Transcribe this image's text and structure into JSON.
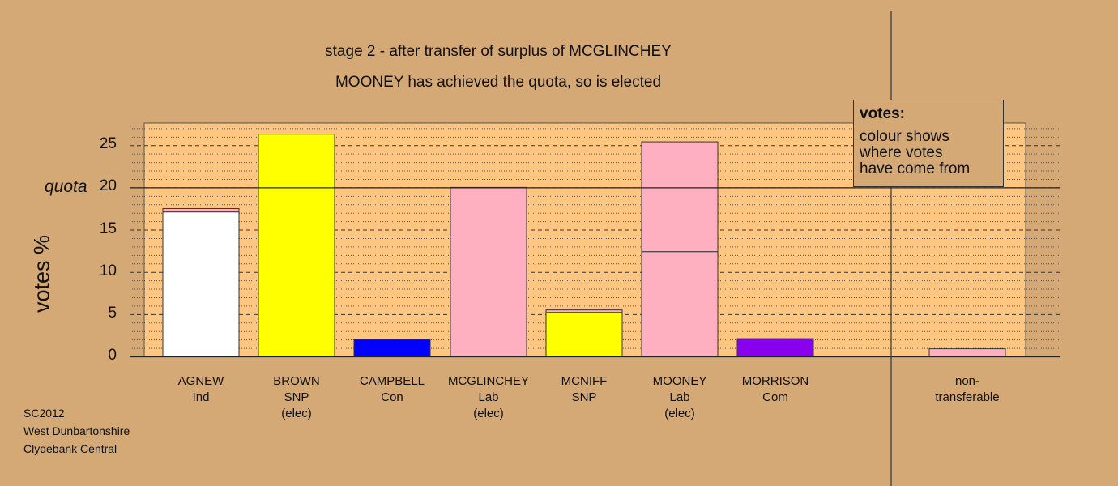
{
  "title_line1": "stage 2 - after transfer of surplus of MCGLINCHEY",
  "title_line2": "MOONEY has achieved the quota, so is elected",
  "ylabel": "votes %",
  "quota_label": "quota",
  "legend": {
    "title": "votes:",
    "line1": "colour shows",
    "line2": "where votes",
    "line3": "have come from"
  },
  "footer": {
    "line1": "SC2012",
    "line2": "West Dunbartonshire",
    "line3": "Clydebank Central"
  },
  "colors": {
    "background": "#d4a975",
    "plot_area": "#ffc682",
    "Ind": "#ffffff",
    "SNP": "#ffff00",
    "Con": "#0000ff",
    "Lab": "#ffb0c0",
    "Com": "#8800ee"
  },
  "chart_data": {
    "type": "bar",
    "stacked": true,
    "ylim": [
      0,
      27.5
    ],
    "yticks": [
      0,
      5,
      10,
      15,
      20,
      25
    ],
    "quota": 20,
    "grid": true,
    "candidates": [
      {
        "name": "AGNEW",
        "party": "Ind",
        "note": "",
        "segments": [
          {
            "from": "Ind",
            "value": 17.1
          },
          {
            "from": "Lab",
            "value": 0.4
          }
        ]
      },
      {
        "name": "BROWN",
        "party": "SNP",
        "note": "(elec)",
        "segments": [
          {
            "from": "SNP",
            "value": 26.3
          }
        ]
      },
      {
        "name": "CAMPBELL",
        "party": "Con",
        "note": "",
        "segments": [
          {
            "from": "Con",
            "value": 2.0
          }
        ]
      },
      {
        "name": "MCGLINCHEY",
        "party": "Lab",
        "note": "(elec)",
        "segments": [
          {
            "from": "Lab",
            "value": 20.0
          }
        ]
      },
      {
        "name": "MCNIFF",
        "party": "SNP",
        "note": "",
        "segments": [
          {
            "from": "SNP",
            "value": 5.2
          },
          {
            "from": "Lab",
            "value": 0.3
          }
        ]
      },
      {
        "name": "MOONEY",
        "party": "Lab",
        "note": "(elec)",
        "segments": [
          {
            "from": "Lab",
            "value": 12.4
          },
          {
            "from": "Lab",
            "value": 13.0
          }
        ]
      },
      {
        "name": "MORRISON",
        "party": "Com",
        "note": "",
        "segments": [
          {
            "from": "Com",
            "value": 2.1
          }
        ]
      }
    ],
    "nontransferable": {
      "line1": "non-",
      "line2": "transferable",
      "segments": [
        {
          "from": "Lab",
          "value": 0.9
        }
      ]
    }
  }
}
